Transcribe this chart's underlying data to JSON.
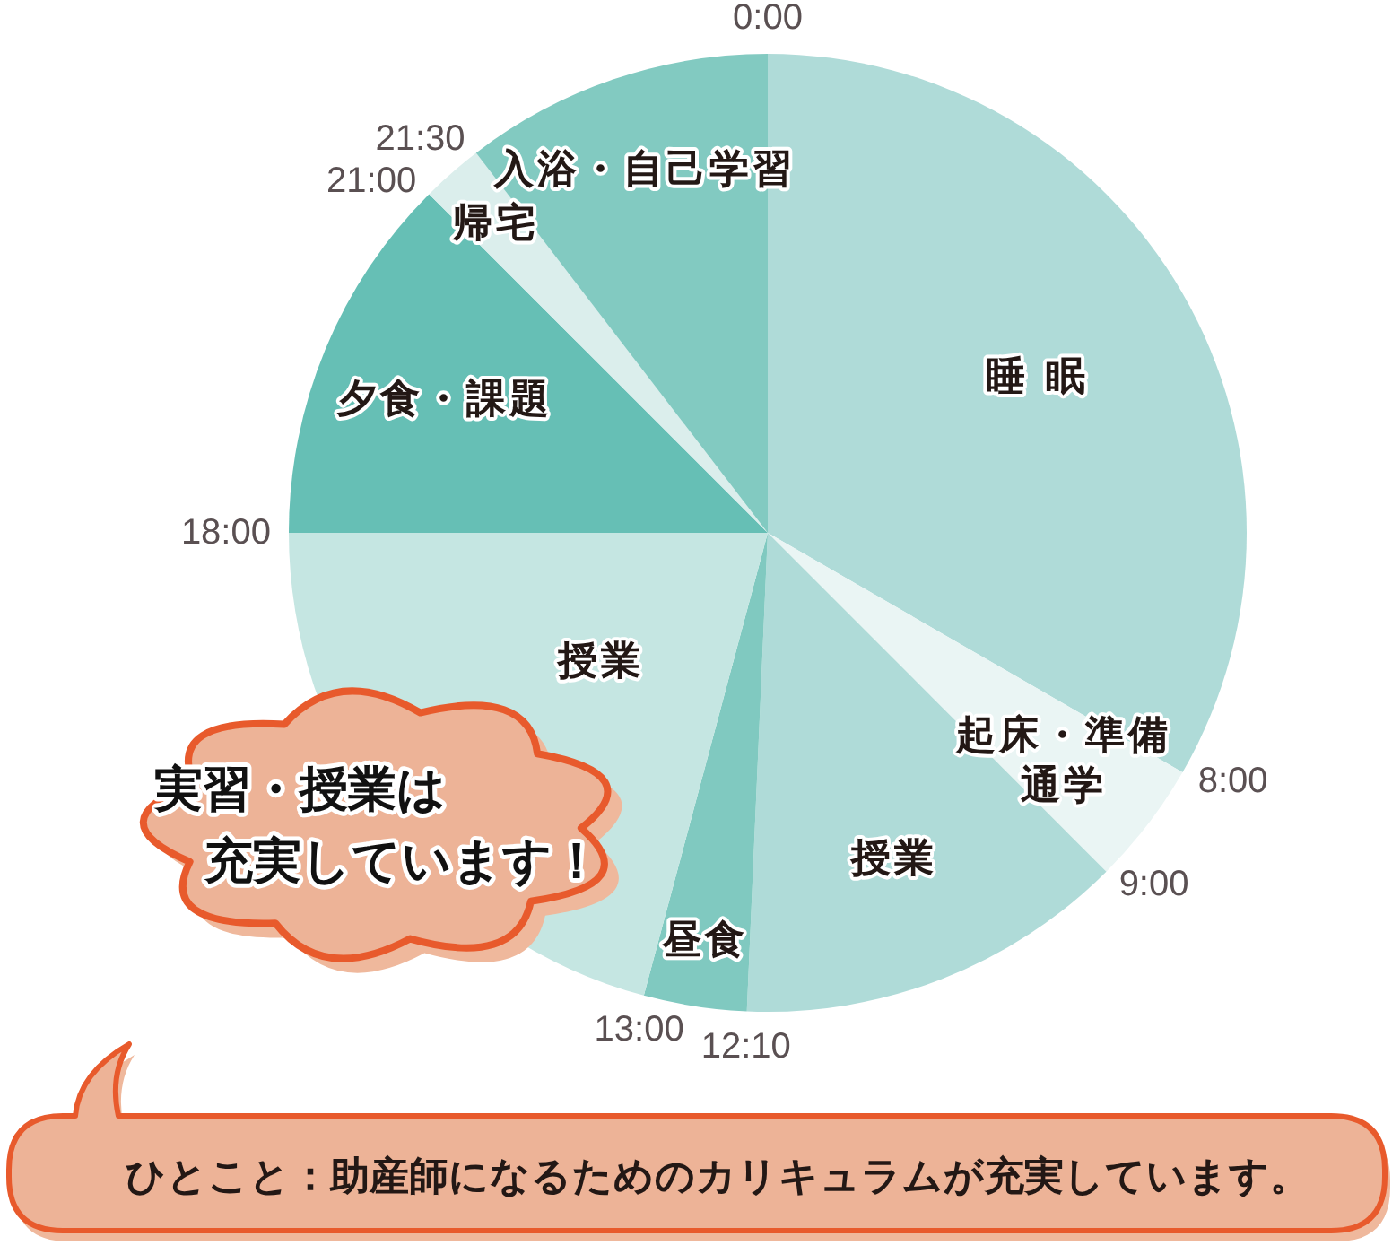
{
  "chart_data": {
    "type": "pie",
    "categories": [
      "睡 眠",
      "起床・準備通学",
      "授業",
      "昼食",
      "授業",
      "夕食・課題",
      "帰宅",
      "入浴・自己学習"
    ],
    "values": [
      33.33,
      4.17,
      13.19,
      3.47,
      20.83,
      12.5,
      2.08,
      10.42
    ],
    "colors": [
      "#afdbd8",
      "#eaf5f4",
      "#afdbd8",
      "#80c9c0",
      "#c5e6e2",
      "#66bfb5",
      "#dbeeec",
      "#82cac1"
    ],
    "annotations": [
      "0:00",
      "8:00",
      "9:00",
      "12:10",
      "13:00",
      "18:00",
      "21:00",
      "21:30",
      "実習・授業は充実しています！",
      "ひとこと：助産師になるためのカリキュラムが充実しています。"
    ]
  }
}
